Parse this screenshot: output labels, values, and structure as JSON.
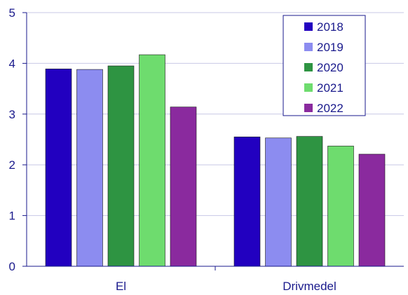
{
  "chart_data": {
    "type": "bar",
    "categories": [
      "El",
      "Drivmedel"
    ],
    "series": [
      {
        "name": "2018",
        "color": "#2200c0",
        "values": [
          3.89,
          2.55
        ]
      },
      {
        "name": "2019",
        "color": "#8c8cf0",
        "values": [
          3.88,
          2.53
        ]
      },
      {
        "name": "2020",
        "color": "#2e9442",
        "values": [
          3.95,
          2.56
        ]
      },
      {
        "name": "2021",
        "color": "#6edc6e",
        "values": [
          4.17,
          2.37
        ]
      },
      {
        "name": "2022",
        "color": "#8a2a9e",
        "values": [
          3.14,
          2.21
        ]
      }
    ],
    "ylim": [
      0,
      5
    ],
    "yticks": [
      "0",
      "1",
      "2",
      "3",
      "4",
      "5"
    ],
    "grid": true,
    "legend_position": "top-right",
    "axis_color": "#1a1a8c",
    "grid_color": "#c8c8e6"
  }
}
